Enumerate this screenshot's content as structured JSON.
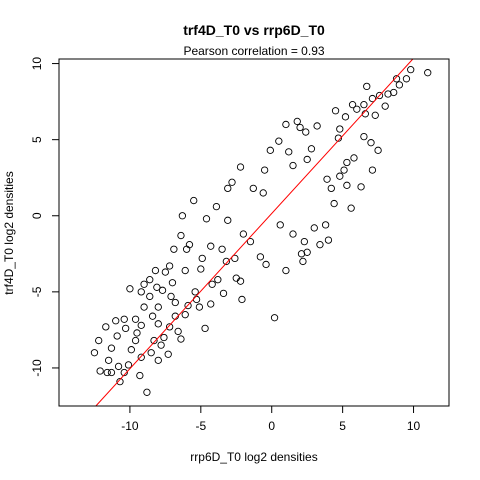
{
  "chart_data": {
    "type": "scatter",
    "title": "trf4D_T0 vs rrp6D_T0",
    "subtitle": "Pearson correlation =  0.93",
    "xlabel": "rrp6D_T0 log2 densities",
    "ylabel": "trf4D_T0 log2 densities",
    "xlim": [
      -15,
      12.5
    ],
    "ylim": [
      -12.5,
      10.3
    ],
    "x_ticks": [
      -10,
      -5,
      0,
      5,
      10
    ],
    "y_ticks": [
      -10,
      -5,
      0,
      5,
      10
    ],
    "grid": false,
    "marker": "open-circle",
    "point_color": "#000000",
    "fit_line": {
      "intercept": 0.15,
      "slope": 1.02,
      "color": "#ff0000"
    },
    "series": [
      {
        "values": [
          [
            11.0,
            9.4
          ],
          [
            9.5,
            9.0
          ],
          [
            9.8,
            9.6
          ],
          [
            8.2,
            8.0
          ],
          [
            8.6,
            8.1
          ],
          [
            7.6,
            7.9
          ],
          [
            7.1,
            7.7
          ],
          [
            6.5,
            7.3
          ],
          [
            6.7,
            8.5
          ],
          [
            6.0,
            7.0
          ],
          [
            5.7,
            7.3
          ],
          [
            9.0,
            8.6
          ],
          [
            5.2,
            6.5
          ],
          [
            4.5,
            6.9
          ],
          [
            4.8,
            5.7
          ],
          [
            3.2,
            5.9
          ],
          [
            2.4,
            5.5
          ],
          [
            2.0,
            5.8
          ],
          [
            1.8,
            6.2
          ],
          [
            1.0,
            6.0
          ],
          [
            7.1,
            3.0
          ],
          [
            7.0,
            4.8
          ],
          [
            7.5,
            4.3
          ],
          [
            5.3,
            3.5
          ],
          [
            5.1,
            3.0
          ],
          [
            4.8,
            2.6
          ],
          [
            5.6,
            0.5
          ],
          [
            5.3,
            2.0
          ],
          [
            4.2,
            1.8
          ],
          [
            3.9,
            2.4
          ],
          [
            4.4,
            0.8
          ],
          [
            2.5,
            3.7
          ],
          [
            1.2,
            4.2
          ],
          [
            -0.1,
            4.3
          ],
          [
            -0.5,
            3.0
          ],
          [
            -2.8,
            2.2
          ],
          [
            -3.1,
            -0.3
          ],
          [
            -2.0,
            -1.2
          ],
          [
            -1.5,
            -1.7
          ],
          [
            -3.2,
            -3.0
          ],
          [
            -4.6,
            -0.2
          ],
          [
            -4.9,
            -2.8
          ],
          [
            -5.5,
            1.0
          ],
          [
            -6.3,
            0.0
          ],
          [
            -6.4,
            -1.3
          ],
          [
            -5.0,
            -3.5
          ],
          [
            -4.2,
            -4.5
          ],
          [
            -3.4,
            -5.1
          ],
          [
            -2.5,
            -4.1
          ],
          [
            -2.1,
            -5.5
          ],
          [
            -2.2,
            -4.3
          ],
          [
            -0.4,
            -3.2
          ],
          [
            -0.8,
            -2.7
          ],
          [
            0.2,
            -6.7
          ],
          [
            2.2,
            -3.0
          ],
          [
            2.5,
            -2.4
          ],
          [
            3.4,
            -1.9
          ],
          [
            3.8,
            -0.6
          ],
          [
            4.0,
            -1.6
          ],
          [
            2.1,
            -2.5
          ],
          [
            2.3,
            -1.7
          ],
          [
            1.0,
            -3.6
          ],
          [
            -6.0,
            -2.2
          ],
          [
            -6.1,
            -3.6
          ],
          [
            -6.9,
            -2.2
          ],
          [
            -7.0,
            -4.4
          ],
          [
            -7.5,
            -3.7
          ],
          [
            -7.1,
            -5.3
          ],
          [
            -7.7,
            -4.9
          ],
          [
            -8.1,
            -4.7
          ],
          [
            -8.6,
            -5.3
          ],
          [
            -8.0,
            -6.0
          ],
          [
            -8.4,
            -6.6
          ],
          [
            -8.0,
            -7.1
          ],
          [
            -7.2,
            -7.3
          ],
          [
            -6.8,
            -6.6
          ],
          [
            -6.1,
            -6.5
          ],
          [
            -9.2,
            -5.0
          ],
          [
            -9.0,
            -6.0
          ],
          [
            -9.2,
            -7.2
          ],
          [
            -9.6,
            -6.8
          ],
          [
            -9.5,
            -7.7
          ],
          [
            -10.3,
            -7.4
          ],
          [
            -10.4,
            -6.8
          ],
          [
            -11.0,
            -6.9
          ],
          [
            -10.9,
            -7.9
          ],
          [
            -11.3,
            -8.7
          ],
          [
            -12.2,
            -8.2
          ],
          [
            -12.5,
            -9.0
          ],
          [
            -11.5,
            -9.5
          ],
          [
            -11.6,
            -10.3
          ],
          [
            -12.1,
            -10.2
          ],
          [
            -11.3,
            -10.3
          ],
          [
            -10.8,
            -9.9
          ],
          [
            -10.4,
            -10.3
          ],
          [
            -10.1,
            -9.8
          ],
          [
            -10.7,
            -10.9
          ],
          [
            -9.3,
            -10.5
          ],
          [
            -8.8,
            -11.6
          ],
          [
            -8.5,
            -9.0
          ],
          [
            -8.0,
            -9.5
          ],
          [
            -7.8,
            -8.5
          ],
          [
            -7.3,
            -9.1
          ],
          [
            -8.3,
            -8.2
          ],
          [
            -9.6,
            -8.2
          ],
          [
            -9.2,
            -9.3
          ],
          [
            -6.4,
            -8.1
          ],
          [
            -5.9,
            -5.9
          ],
          [
            -4.7,
            -7.4
          ],
          [
            -4.3,
            -5.8
          ],
          [
            -5.3,
            -5.5
          ],
          [
            -7.2,
            -3.3
          ],
          [
            -3.8,
            -4.2
          ],
          [
            -8.6,
            -4.2
          ],
          [
            -9.0,
            -4.5
          ],
          [
            -10.0,
            -4.8
          ],
          [
            -6.6,
            -7.6
          ],
          [
            -5.4,
            -5.0
          ],
          [
            -3.5,
            -2.2
          ],
          [
            -1.3,
            1.8
          ],
          [
            -2.2,
            3.2
          ],
          [
            0.5,
            4.9
          ],
          [
            6.3,
            1.9
          ],
          [
            5.8,
            3.8
          ],
          [
            8.0,
            7.2
          ],
          [
            8.8,
            9.0
          ],
          [
            6.6,
            6.7
          ],
          [
            -8.2,
            -3.6
          ],
          [
            -3.9,
            0.6
          ],
          [
            -4.3,
            -2.0
          ],
          [
            1.5,
            -1.2
          ],
          [
            3.0,
            -0.8
          ],
          [
            -7.6,
            -8.0
          ],
          [
            -6.8,
            -5.7
          ],
          [
            -5.1,
            -6.0
          ],
          [
            -0.6,
            1.5
          ],
          [
            1.5,
            3.3
          ],
          [
            4.7,
            5.1
          ],
          [
            2.8,
            4.4
          ],
          [
            -2.6,
            -2.8
          ],
          [
            0.6,
            -0.6
          ],
          [
            6.5,
            5.2
          ],
          [
            7.3,
            6.6
          ],
          [
            -11.7,
            -7.3
          ],
          [
            -9.9,
            -8.8
          ],
          [
            -3.1,
            1.8
          ],
          [
            -5.8,
            -1.9
          ]
        ]
      }
    ]
  }
}
